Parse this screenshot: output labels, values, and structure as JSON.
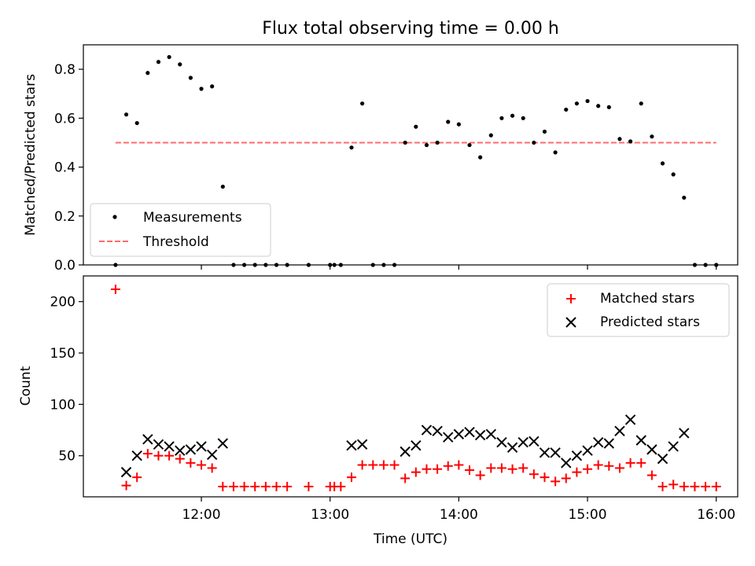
{
  "chart_data": [
    {
      "type": "scatter",
      "title": "Flux total observing time = 0.00 h",
      "ylabel": "Matched/Predicted stars",
      "xlabel": "",
      "xlim": [
        "11:05",
        "16:10"
      ],
      "ylim": [
        0,
        0.9
      ],
      "yticks": [
        0.0,
        0.2,
        0.4,
        0.6,
        0.8
      ],
      "ytick_labels": [
        "0.0",
        "0.2",
        "0.4",
        "0.6",
        "0.8"
      ],
      "xticks": [
        "12:00",
        "13:00",
        "14:00",
        "15:00",
        "16:00"
      ],
      "show_xtick_labels": false,
      "grid": false,
      "legend_position": "lower-left",
      "threshold": {
        "name": "Threshold",
        "value": 0.5,
        "x_range": [
          "11:20",
          "16:00"
        ],
        "color": "#ff6b6b"
      },
      "series": [
        {
          "name": "Measurements",
          "color": "#000000",
          "marker": "dot",
          "x": [
            "11:20",
            "11:25",
            "11:30",
            "11:35",
            "11:40",
            "11:45",
            "11:50",
            "11:55",
            "12:00",
            "12:05",
            "12:10",
            "12:15",
            "12:20",
            "12:25",
            "12:30",
            "12:35",
            "12:40",
            "12:50",
            "13:00",
            "13:02",
            "13:05",
            "13:10",
            "13:15",
            "13:20",
            "13:25",
            "13:30",
            "13:35",
            "13:40",
            "13:45",
            "13:50",
            "13:55",
            "14:00",
            "14:05",
            "14:10",
            "14:15",
            "14:20",
            "14:25",
            "14:30",
            "14:35",
            "14:40",
            "14:45",
            "14:50",
            "14:55",
            "15:00",
            "15:05",
            "15:10",
            "15:15",
            "15:20",
            "15:25",
            "15:30",
            "15:35",
            "15:40",
            "15:45",
            "15:50",
            "15:55",
            "16:00"
          ],
          "y": [
            0.0,
            0.615,
            0.58,
            0.785,
            0.83,
            0.85,
            0.82,
            0.765,
            0.72,
            0.73,
            0.32,
            0.0,
            0.0,
            0.0,
            0.0,
            0.0,
            0.0,
            0.0,
            0.0,
            0.0,
            0.0,
            0.48,
            0.66,
            0.0,
            0.0,
            0.0,
            0.5,
            0.565,
            0.49,
            0.5,
            0.585,
            0.575,
            0.49,
            0.44,
            0.53,
            0.6,
            0.61,
            0.6,
            0.5,
            0.545,
            0.46,
            0.635,
            0.66,
            0.67,
            0.65,
            0.645,
            0.515,
            0.505,
            0.66,
            0.525,
            0.415,
            0.37,
            0.275,
            0.0,
            0.0,
            0.0
          ]
        }
      ]
    },
    {
      "type": "scatter",
      "title": "",
      "ylabel": "Count",
      "xlabel": "Time (UTC)",
      "xlim": [
        "11:05",
        "16:10"
      ],
      "ylim": [
        10,
        225
      ],
      "yticks": [
        50,
        100,
        150,
        200
      ],
      "ytick_labels": [
        "50",
        "100",
        "150",
        "200"
      ],
      "xticks": [
        "12:00",
        "13:00",
        "14:00",
        "15:00",
        "16:00"
      ],
      "show_xtick_labels": true,
      "grid": false,
      "legend_position": "upper-right",
      "series": [
        {
          "name": "Matched stars",
          "color": "#ff0000",
          "marker": "plus",
          "x": [
            "11:20",
            "11:25",
            "11:30",
            "11:35",
            "11:40",
            "11:45",
            "11:50",
            "11:55",
            "12:00",
            "12:05",
            "12:10",
            "12:15",
            "12:20",
            "12:25",
            "12:30",
            "12:35",
            "12:40",
            "12:50",
            "13:00",
            "13:02",
            "13:05",
            "13:10",
            "13:15",
            "13:20",
            "13:25",
            "13:30",
            "13:35",
            "13:40",
            "13:45",
            "13:50",
            "13:55",
            "14:00",
            "14:05",
            "14:10",
            "14:15",
            "14:20",
            "14:25",
            "14:30",
            "14:35",
            "14:40",
            "14:45",
            "14:50",
            "14:55",
            "15:00",
            "15:05",
            "15:10",
            "15:15",
            "15:20",
            "15:25",
            "15:30",
            "15:35",
            "15:40",
            "15:45",
            "15:50",
            "15:55",
            "16:00"
          ],
          "y": [
            212,
            21,
            29,
            52,
            50,
            50,
            47,
            43,
            41,
            38,
            20,
            20,
            20,
            20,
            20,
            20,
            20,
            20,
            20,
            20,
            20,
            29,
            41,
            41,
            41,
            41,
            28,
            34,
            37,
            37,
            40,
            41,
            36,
            31,
            38,
            38,
            37,
            38,
            32,
            29,
            25,
            28,
            34,
            37,
            41,
            40,
            38,
            43,
            43,
            31,
            20,
            22,
            20,
            20,
            20,
            20
          ]
        },
        {
          "name": "Predicted stars",
          "color": "#000000",
          "marker": "x",
          "x": [
            "11:25",
            "11:30",
            "11:35",
            "11:40",
            "11:45",
            "11:50",
            "11:55",
            "12:00",
            "12:05",
            "12:10",
            "13:10",
            "13:15",
            "13:35",
            "13:40",
            "13:45",
            "13:50",
            "13:55",
            "14:00",
            "14:05",
            "14:10",
            "14:15",
            "14:20",
            "14:25",
            "14:30",
            "14:35",
            "14:40",
            "14:45",
            "14:50",
            "14:55",
            "15:00",
            "15:05",
            "15:10",
            "15:15",
            "15:20",
            "15:25",
            "15:30",
            "15:35",
            "15:40",
            "15:45"
          ],
          "y": [
            34,
            50,
            66,
            61,
            59,
            55,
            56,
            59,
            51,
            62,
            60,
            61,
            54,
            60,
            75,
            74,
            68,
            71,
            73,
            70,
            71,
            63,
            58,
            63,
            64,
            53,
            53,
            43,
            50,
            55,
            63,
            62,
            74,
            85,
            65,
            56,
            47,
            59,
            72
          ]
        }
      ]
    }
  ]
}
